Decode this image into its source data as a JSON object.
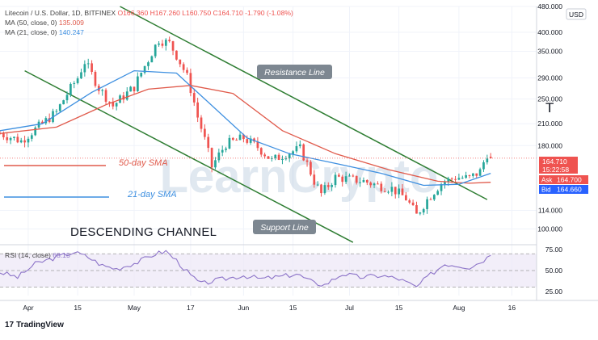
{
  "legend": {
    "symbol": "Litecoin / U.S. Dollar, 1D, BITFINEX",
    "ohlc": "O166.360 H167.260 L160.750 C164.710 -1.790 (-1.08%)",
    "ma50_label": "MA (50, close, 0)",
    "ma50_value": "135.009",
    "ma21_label": "MA (21, close, 0)",
    "ma21_value": "140.247",
    "rsi_label": "RSI (14, close)",
    "rsi_value": "68.15"
  },
  "colors": {
    "ma50": "#e05a4b",
    "ma21": "#3d8fe0",
    "up": "#26a69a",
    "down": "#ef5350",
    "channel": "#2e7d32",
    "rsi": "#8c73c8",
    "rsi_band": "#ede7f6",
    "annotation_box": "#7d8791"
  },
  "annotations": {
    "resistance": "Resistance Line",
    "support": "Support Line",
    "channel_title": "DESCENDING CHANNEL",
    "sma50": "50-day SMA",
    "sma21": "21-day SMA",
    "watermark": "LearnCrypto"
  },
  "price_badges": {
    "last_price": "164.710",
    "countdown": "15:22:58",
    "ask_label": "Ask",
    "ask": "164.700",
    "bid_label": "Bid",
    "bid": "164.660",
    "currency": "USD"
  },
  "footer": {
    "brand": "TradingView",
    "logo": "17"
  },
  "chart_data": {
    "type": "candlestick",
    "title": "Litecoin / U.S. Dollar, 1D, BITFINEX",
    "y_axis": {
      "scale": "log",
      "range": [
        90,
        480
      ],
      "ticks": [
        480,
        400,
        350,
        290,
        250,
        210,
        180,
        114,
        100
      ],
      "tick_labels": [
        "480.000",
        "400.000",
        "350.000",
        "290.000",
        "250.000",
        "210.000",
        "180.000",
        "114.000",
        "100.000"
      ]
    },
    "x_axis": {
      "range": [
        "2021-03-24",
        "2021-08-23"
      ],
      "ticks": [
        "2021-04-01",
        "2021-04-15",
        "2021-05-01",
        "2021-05-17",
        "2021-06-01",
        "2021-06-15",
        "2021-07-01",
        "2021-07-15",
        "2021-08-01",
        "2021-08-16"
      ],
      "tick_labels": [
        "Apr",
        "15",
        "May",
        "17",
        "Jun",
        "15",
        "Jul",
        "15",
        "Aug",
        "16"
      ]
    },
    "anchors": [
      [
        "2021-03-24",
        196
      ],
      [
        "2021-03-30",
        186
      ],
      [
        "2021-04-05",
        210
      ],
      [
        "2021-04-09",
        228
      ],
      [
        "2021-04-15",
        290
      ],
      [
        "2021-04-17",
        325
      ],
      [
        "2021-04-21",
        270
      ],
      [
        "2021-04-25",
        238
      ],
      [
        "2021-05-01",
        272
      ],
      [
        "2021-05-05",
        330
      ],
      [
        "2021-05-08",
        380
      ],
      [
        "2021-05-11",
        370
      ],
      [
        "2021-05-13",
        340
      ],
      [
        "2021-05-16",
        292
      ],
      [
        "2021-05-19",
        220
      ],
      [
        "2021-05-23",
        155
      ],
      [
        "2021-05-27",
        182
      ],
      [
        "2021-06-01",
        190
      ],
      [
        "2021-06-05",
        178
      ],
      [
        "2021-06-09",
        162
      ],
      [
        "2021-06-13",
        170
      ],
      [
        "2021-06-17",
        176
      ],
      [
        "2021-06-21",
        140
      ],
      [
        "2021-06-23",
        128
      ],
      [
        "2021-06-27",
        144
      ],
      [
        "2021-07-01",
        142
      ],
      [
        "2021-07-05",
        140
      ],
      [
        "2021-07-09",
        136
      ],
      [
        "2021-07-13",
        133
      ],
      [
        "2021-07-17",
        124
      ],
      [
        "2021-07-20",
        110
      ],
      [
        "2021-07-23",
        123
      ],
      [
        "2021-07-27",
        138
      ],
      [
        "2021-07-31",
        144
      ],
      [
        "2021-08-04",
        143
      ],
      [
        "2021-08-07",
        150
      ],
      [
        "2021-08-09",
        170
      ],
      [
        "2021-08-10",
        164.71
      ]
    ],
    "last_close": 164.71,
    "series": [
      {
        "name": "MA (50, close, 0)",
        "values": [
          [
            0,
            196
          ],
          [
            16,
            205
          ],
          [
            30,
            240
          ],
          [
            42,
            268
          ],
          [
            54,
            275
          ],
          [
            66,
            260
          ],
          [
            80,
            200
          ],
          [
            95,
            170
          ],
          [
            110,
            152
          ],
          [
            124,
            140
          ],
          [
            133,
            138
          ],
          [
            139,
            139
          ]
        ]
      },
      {
        "name": "MA (21, close, 0)",
        "values": [
          [
            0,
            200
          ],
          [
            12,
            210
          ],
          [
            26,
            262
          ],
          [
            38,
            305
          ],
          [
            50,
            300
          ],
          [
            58,
            250
          ],
          [
            70,
            190
          ],
          [
            82,
            170
          ],
          [
            96,
            158
          ],
          [
            108,
            148
          ],
          [
            120,
            136
          ],
          [
            130,
            137
          ],
          [
            139,
            148
          ]
        ]
      }
    ],
    "channel": {
      "upper": [
        [
          "2021-04-27",
          480
        ],
        [
          "2021-08-09",
          123
        ]
      ],
      "lower": [
        [
          "2021-03-31",
          305
        ],
        [
          "2021-07-02",
          91
        ]
      ]
    },
    "rsi": {
      "range": [
        20,
        78
      ],
      "ticks": [
        75,
        50,
        25
      ],
      "tick_labels": [
        "75.00",
        "50.00",
        "25.00"
      ],
      "band": [
        30,
        70
      ],
      "anchors": [
        [
          "2021-03-24",
          48
        ],
        [
          "2021-03-29",
          42
        ],
        [
          "2021-04-03",
          58
        ],
        [
          "2021-04-09",
          66
        ],
        [
          "2021-04-14",
          72
        ],
        [
          "2021-04-18",
          66
        ],
        [
          "2021-04-22",
          56
        ],
        [
          "2021-04-26",
          52
        ],
        [
          "2021-05-02",
          60
        ],
        [
          "2021-05-07",
          70
        ],
        [
          "2021-05-10",
          73
        ],
        [
          "2021-05-13",
          62
        ],
        [
          "2021-05-17",
          44
        ],
        [
          "2021-05-20",
          34
        ],
        [
          "2021-05-24",
          38
        ],
        [
          "2021-06-01",
          44
        ],
        [
          "2021-06-06",
          40
        ],
        [
          "2021-06-12",
          43
        ],
        [
          "2021-06-16",
          46
        ],
        [
          "2021-06-21",
          35
        ],
        [
          "2021-06-24",
          33
        ],
        [
          "2021-06-29",
          46
        ],
        [
          "2021-07-04",
          42
        ],
        [
          "2021-07-10",
          44
        ],
        [
          "2021-07-15",
          40
        ],
        [
          "2021-07-20",
          30
        ],
        [
          "2021-07-23",
          42
        ],
        [
          "2021-07-28",
          58
        ],
        [
          "2021-08-01",
          56
        ],
        [
          "2021-08-04",
          54
        ],
        [
          "2021-08-07",
          60
        ],
        [
          "2021-08-10",
          68.15
        ]
      ]
    }
  }
}
